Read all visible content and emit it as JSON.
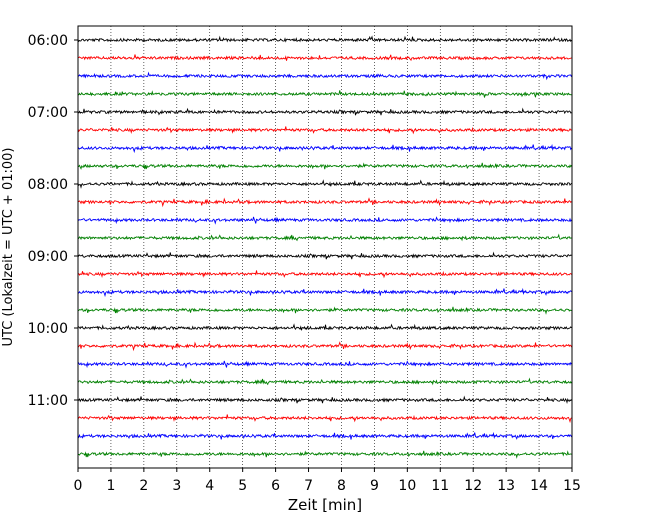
{
  "chart_data": {
    "type": "line",
    "title": "",
    "xlabel": "Zeit  [min]",
    "ylabel": "UTC (Lokalzeit = UTC + 01:00)",
    "xlim": [
      0,
      15
    ],
    "x_ticks": [
      0,
      1,
      2,
      3,
      4,
      5,
      6,
      7,
      8,
      9,
      10,
      11,
      12,
      13,
      14,
      15
    ],
    "y_tick_labels": [
      "06:00",
      "07:00",
      "08:00",
      "09:00",
      "10:00",
      "11:00"
    ],
    "grid": "vertical dotted",
    "legend": "none",
    "trace_color_cycle": [
      "#000000",
      "#ff0000",
      "#0000ff",
      "#008000"
    ],
    "trace_start_times": [
      "06:00",
      "06:15",
      "06:30",
      "06:45",
      "07:00",
      "07:15",
      "07:30",
      "07:45",
      "08:00",
      "08:15",
      "08:30",
      "08:45",
      "09:00",
      "09:15",
      "09:30",
      "09:45",
      "10:00",
      "10:15",
      "10:30",
      "10:45",
      "11:00",
      "11:15",
      "11:30",
      "11:45"
    ]
  }
}
